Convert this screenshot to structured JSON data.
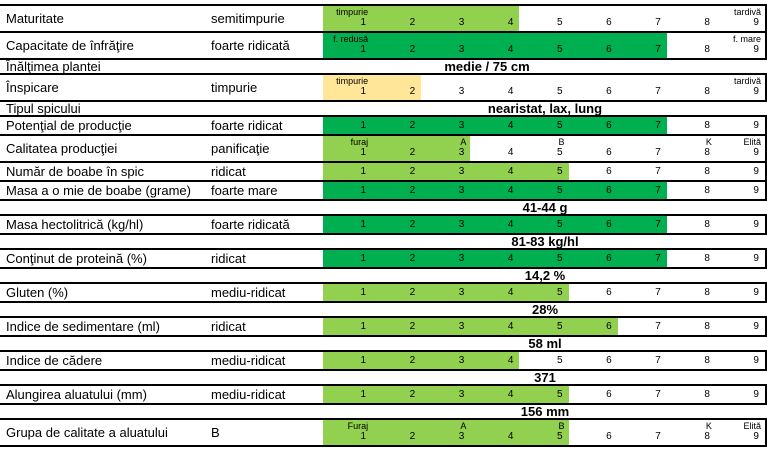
{
  "table": {
    "scale_max": 9,
    "colors": {
      "light_green": "#92d050",
      "dark_green": "#00b050",
      "yellow": "#ffe699",
      "border": "#000000"
    },
    "rows": [
      {
        "type": "scale",
        "name": "Maturitate",
        "value": "semitimpurie",
        "fill_cells": 4,
        "fill": "light_green",
        "labels": [
          {
            "text": "timpurie",
            "cell": 1
          },
          {
            "text": "tardivă",
            "cell": 9
          }
        ]
      },
      {
        "type": "scale",
        "name": "Capacitate de înfrăţire",
        "value": "foarte ridicată",
        "fill_cells": 7,
        "fill": "dark_green",
        "labels": [
          {
            "text": "f. redusă",
            "cell": 1
          },
          {
            "text": "f. mare",
            "cell": 9
          }
        ]
      },
      {
        "type": "info",
        "name": "Înălţimea plantei",
        "text": "medie / 75 cm",
        "span": "value-scale"
      },
      {
        "type": "scale",
        "name": "Înspicare",
        "value": "timpurie",
        "fill_cells": 2,
        "fill": "yellow",
        "labels": [
          {
            "text": "timpurie",
            "cell": 1
          },
          {
            "text": "tardivă",
            "cell": 9
          }
        ]
      },
      {
        "type": "info",
        "name": "Tipul spicului",
        "text": "nearistat, lax, lung",
        "span": "scale"
      },
      {
        "type": "scale",
        "name": "Potenţial de producţie",
        "value": "foarte ridicat",
        "fill_cells": 7,
        "fill": "dark_green",
        "labels": []
      },
      {
        "type": "scale",
        "name": "Calitatea producţiei",
        "value": "panificaţie",
        "fill_cells": 3,
        "fill": "light_green",
        "labels": [
          {
            "text": "furaj",
            "cell": 1
          },
          {
            "text": "A",
            "cell": 3
          },
          {
            "text": "B",
            "cell": 5
          },
          {
            "text": "K",
            "cell": 8
          },
          {
            "text": "Elită",
            "cell": 9
          }
        ]
      },
      {
        "type": "scale",
        "name": "Număr de boabe în spic",
        "value": "ridicat",
        "fill_cells": 5,
        "fill": "light_green",
        "labels": []
      },
      {
        "type": "scale",
        "name": "Masa a o mie de boabe (grame)",
        "value": "foarte mare",
        "fill_cells": 7,
        "fill": "dark_green",
        "labels": []
      },
      {
        "type": "info",
        "name": "",
        "text": "41-44 g",
        "span": "scale"
      },
      {
        "type": "scale",
        "name": "Masa hectolitrică (kg/hl)",
        "value": "foarte ridicată",
        "fill_cells": 7,
        "fill": "dark_green",
        "labels": []
      },
      {
        "type": "info",
        "name": "",
        "text": "81-83 kg/hl",
        "span": "scale"
      },
      {
        "type": "scale",
        "name": "Conţinut de proteină (%)",
        "value": "ridicat",
        "fill_cells": 7,
        "fill": "dark_green",
        "labels": []
      },
      {
        "type": "info",
        "name": "",
        "text": "14,2 %",
        "span": "scale"
      },
      {
        "type": "scale",
        "name": "Gluten (%)",
        "value": "mediu-ridicat",
        "fill_cells": 5,
        "fill": "light_green",
        "labels": []
      },
      {
        "type": "info",
        "name": "",
        "text": "28%",
        "span": "scale"
      },
      {
        "type": "scale",
        "name": "Indice de sedimentare (ml)",
        "value": "ridicat",
        "fill_cells": 6,
        "fill": "light_green",
        "labels": []
      },
      {
        "type": "info",
        "name": "",
        "text": "58 ml",
        "span": "scale"
      },
      {
        "type": "scale",
        "name": "Indice de cădere",
        "value": "mediu-ridicat",
        "fill_cells": 4,
        "fill": "light_green",
        "labels": []
      },
      {
        "type": "info",
        "name": "",
        "text": "371",
        "span": "scale"
      },
      {
        "type": "scale",
        "name": "Alungirea aluatului (mm)",
        "value": "mediu-ridicat",
        "fill_cells": 5,
        "fill": "light_green",
        "labels": []
      },
      {
        "type": "info",
        "name": "",
        "text": "156 mm",
        "span": "scale"
      },
      {
        "type": "scale",
        "name": "Grupa de calitate a aluatului",
        "value": "B",
        "fill_cells": 5,
        "fill": "light_green",
        "labels": [
          {
            "text": "Furaj",
            "cell": 1
          },
          {
            "text": "A",
            "cell": 3
          },
          {
            "text": "B",
            "cell": 5
          },
          {
            "text": "K",
            "cell": 8
          },
          {
            "text": "Elită",
            "cell": 9
          }
        ]
      },
      {
        "type": "empty"
      }
    ]
  }
}
